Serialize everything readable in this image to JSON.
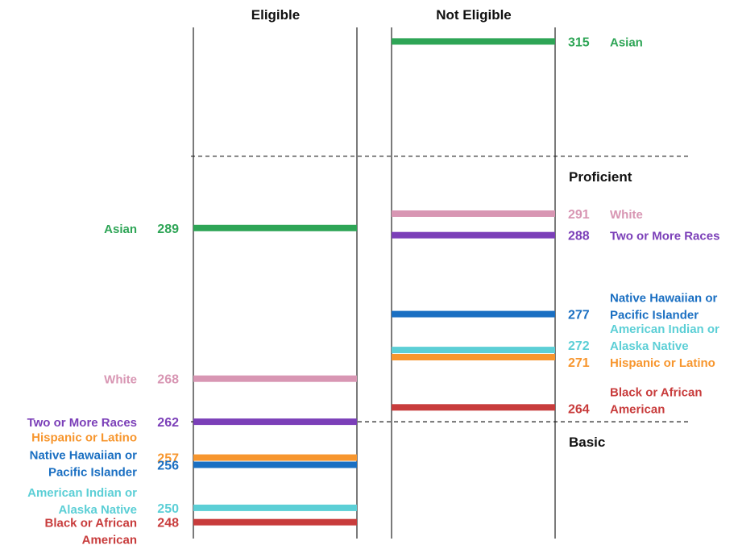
{
  "chart_data": {
    "type": "bar",
    "columns": [
      "Eligible",
      "Not Eligible"
    ],
    "thresholds": [
      {
        "label": "Proficient",
        "value": 299
      },
      {
        "label": "Basic",
        "value": 262
      }
    ],
    "ylim": [
      245,
      318
    ],
    "groups": [
      {
        "name": "Asian",
        "label_lines": [
          "Asian"
        ],
        "color": "#2ea556",
        "eligible": 289,
        "not_eligible": 315
      },
      {
        "name": "White",
        "label_lines": [
          "White"
        ],
        "color": "#d896b3",
        "eligible": 268,
        "not_eligible": 291
      },
      {
        "name": "Two or More Races",
        "label_lines": [
          "Two or More Races"
        ],
        "color": "#7b3fb8",
        "eligible": 262,
        "not_eligible": 288
      },
      {
        "name": "Hispanic or Latino",
        "label_lines": [
          "Hispanic or Latino"
        ],
        "color": "#f7962e",
        "eligible": 257,
        "not_eligible": 271
      },
      {
        "name": "Native Hawaiian or Pacific Islander",
        "label_lines": [
          "Native Hawaiian or",
          "Pacific Islander"
        ],
        "color": "#1a6fc2",
        "eligible": 256,
        "not_eligible": 277
      },
      {
        "name": "American Indian or Alaska Native",
        "label_lines": [
          "American Indian or",
          "Alaska Native"
        ],
        "color": "#5ccfd6",
        "eligible": 250,
        "not_eligible": 272
      },
      {
        "name": "Black or African American",
        "label_lines": [
          "Black or African",
          "American"
        ],
        "color": "#c83c3c",
        "eligible": 248,
        "not_eligible": 264
      }
    ]
  }
}
